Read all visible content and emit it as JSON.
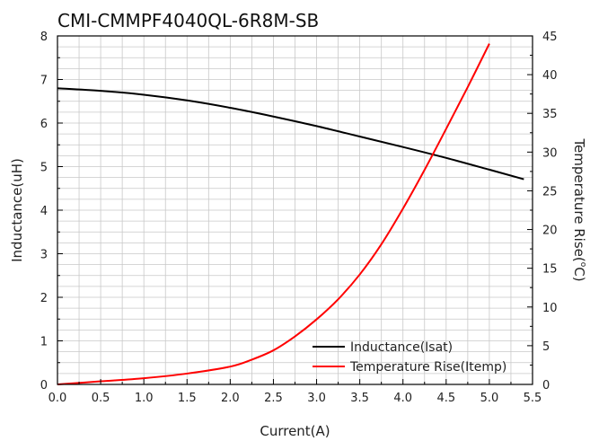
{
  "chart_data": {
    "type": "line",
    "title": "CMI-CMMPF4040QL-6R8M-SB",
    "xlabel": "Current(A)",
    "ylabel": "Inductance(uH)",
    "y2label_main": "Temperature Rise(",
    "y2label_sup": "o",
    "y2label_end": "C)",
    "xlim": [
      0,
      5.5
    ],
    "ylim": [
      0,
      8
    ],
    "y2lim": [
      0,
      45
    ],
    "xticks": [
      "0.0",
      "0.5",
      "1.0",
      "1.5",
      "2.0",
      "2.5",
      "3.0",
      "3.5",
      "4.0",
      "4.5",
      "5.0",
      "5.5"
    ],
    "yticks": [
      "0",
      "1",
      "2",
      "3",
      "4",
      "5",
      "6",
      "7",
      "8"
    ],
    "y2ticks": [
      "0",
      "5",
      "10",
      "15",
      "20",
      "25",
      "30",
      "35",
      "40",
      "45"
    ],
    "grid": true,
    "legend_position": "bottom-right",
    "series": [
      {
        "name": "Inductance(Isat)",
        "axis": "left",
        "color": "#000000",
        "x": [
          0,
          0.5,
          1.0,
          1.5,
          2.0,
          2.5,
          3.0,
          3.5,
          4.0,
          4.5,
          5.0,
          5.4
        ],
        "y": [
          6.8,
          6.74,
          6.65,
          6.52,
          6.35,
          6.15,
          5.93,
          5.69,
          5.45,
          5.2,
          4.93,
          4.71
        ]
      },
      {
        "name": "Temperature Rise(Itemp)",
        "axis": "right",
        "color": "#ff0000",
        "x": [
          0,
          0.5,
          1.0,
          1.5,
          2.0,
          2.25,
          2.5,
          2.75,
          3.0,
          3.25,
          3.5,
          3.75,
          4.0,
          4.25,
          4.5,
          4.75,
          5.0
        ],
        "y": [
          0,
          0.4,
          0.8,
          1.4,
          2.3,
          3.2,
          4.4,
          6.2,
          8.4,
          11.0,
          14.2,
          18.1,
          22.7,
          27.7,
          33.0,
          38.4,
          44.0
        ]
      }
    ]
  }
}
